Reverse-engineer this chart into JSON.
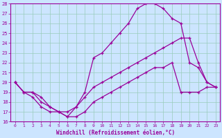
{
  "xlabel": "Windchill (Refroidissement éolien,°C)",
  "xlim": [
    -0.5,
    23.5
  ],
  "ylim": [
    16,
    28
  ],
  "xticks": [
    0,
    1,
    2,
    3,
    4,
    5,
    6,
    7,
    8,
    9,
    10,
    11,
    12,
    13,
    14,
    15,
    16,
    17,
    18,
    19,
    20,
    21,
    22,
    23
  ],
  "yticks": [
    16,
    17,
    18,
    19,
    20,
    21,
    22,
    23,
    24,
    25,
    26,
    27,
    28
  ],
  "line_color": "#990099",
  "bg_color": "#cce5ff",
  "grid_color": "#99ccbb",
  "line1_x": [
    0,
    1,
    2,
    3,
    4,
    5,
    6,
    7,
    8,
    9,
    10,
    11,
    12,
    13,
    14,
    15,
    16,
    17,
    18,
    19,
    20,
    21,
    22,
    23
  ],
  "line1_y": [
    20.0,
    19.0,
    18.5,
    17.5,
    17.0,
    17.0,
    16.5,
    17.5,
    19.0,
    22.5,
    23.0,
    24.0,
    25.0,
    26.0,
    27.5,
    28.0,
    28.0,
    27.5,
    26.5,
    26.0,
    22.0,
    21.5,
    20.0,
    19.5
  ],
  "line2_x": [
    0,
    1,
    2,
    3,
    4,
    5,
    6,
    7,
    8,
    9,
    10,
    11,
    12,
    13,
    14,
    15,
    16,
    17,
    18,
    19,
    20,
    21,
    22,
    23
  ],
  "line2_y": [
    20.0,
    19.0,
    19.0,
    18.0,
    17.5,
    17.0,
    17.0,
    17.5,
    18.5,
    19.5,
    20.0,
    20.5,
    21.0,
    21.5,
    22.0,
    22.5,
    23.0,
    23.5,
    24.0,
    24.5,
    24.5,
    22.0,
    20.0,
    19.5
  ],
  "line3_x": [
    0,
    1,
    2,
    3,
    4,
    5,
    6,
    7,
    8,
    9,
    10,
    11,
    12,
    13,
    14,
    15,
    16,
    17,
    18,
    19,
    20,
    21,
    22,
    23
  ],
  "line3_y": [
    20.0,
    19.0,
    19.0,
    18.5,
    17.5,
    17.0,
    16.5,
    16.5,
    17.0,
    18.0,
    18.5,
    19.0,
    19.5,
    20.0,
    20.5,
    21.0,
    21.5,
    21.5,
    22.0,
    19.0,
    19.0,
    19.0,
    19.5,
    19.5
  ]
}
